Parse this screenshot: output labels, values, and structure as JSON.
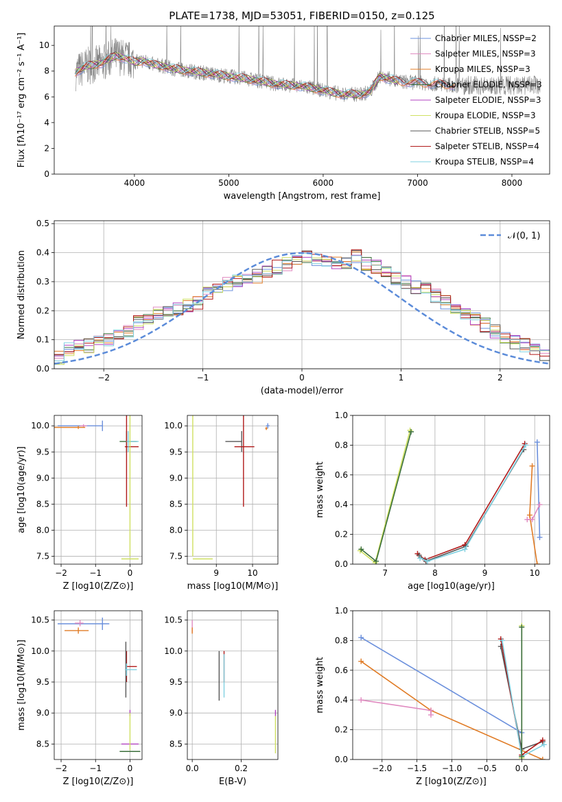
{
  "figure_title": "PLATE=1738, MJD=53051, FIBERID=0150, z=0.125",
  "colors": {
    "Chabrier MILES": "#6a8fdc",
    "Salpeter MILES": "#e08ac0",
    "Kroupa MILES": "#e07b25",
    "Chabrier ELODIE": "#3a6e3a",
    "Salpeter ELODIE": "#b040c0",
    "Kroupa ELODIE": "#cfe060",
    "Chabrier STELIB": "#555555",
    "Salpeter STELIB": "#b01818",
    "Kroupa STELIB": "#7fd0e0",
    "observed": "#808080",
    "gaussian": "#5b8bd9"
  },
  "chart_data": [
    {
      "id": "spectrum",
      "type": "line",
      "title": "PLATE=1738, MJD=53051, FIBERID=0150, z=0.125",
      "xlabel": "wavelength [Angstrom, rest frame]",
      "ylabel": "Flux [fλ10⁻¹⁷ erg cm⁻² s⁻¹ A⁻¹]",
      "xlim": [
        3150,
        8400
      ],
      "ylim": [
        0,
        11.5
      ],
      "xticks": [
        4000,
        5000,
        6000,
        7000,
        8000
      ],
      "yticks": [
        0,
        2,
        4,
        6,
        8,
        10
      ],
      "grid": false,
      "legend_position": "top-right",
      "legend": [
        "Chabrier MILES, N_SSP=2",
        "Salpeter MILES, N_SSP=3",
        "Kroupa MILES, N_SSP=3",
        "Chabrier ELODIE, N_SSP=3",
        "Salpeter ELODIE, N_SSP=3",
        "Kroupa ELODIE, N_SSP=3",
        "Chabrier STELIB, N_SSP=5",
        "Salpeter STELIB, N_SSP=4",
        "Kroupa STELIB, N_SSP=4"
      ],
      "model_continuum": {
        "x": [
          3370,
          3500,
          3650,
          3800,
          3900,
          4000,
          4100,
          4200,
          4300,
          4400,
          4500,
          4700,
          5000,
          5200,
          5500,
          5800,
          6000,
          6200,
          6400,
          6500,
          6600,
          6800,
          7000,
          7200,
          7400
        ],
        "y": [
          7.9,
          8.4,
          8.6,
          9.2,
          9.0,
          8.7,
          8.8,
          8.5,
          8.4,
          8.2,
          8.1,
          7.9,
          7.6,
          7.4,
          7.0,
          6.8,
          6.5,
          6.2,
          6.2,
          6.4,
          7.6,
          7.2,
          7.1,
          7.0,
          6.9
        ]
      }
    },
    {
      "id": "residuals",
      "type": "histogram",
      "xlabel": "(data-model)/error",
      "ylabel": "Normed distribution",
      "xlim": [
        -2.5,
        2.5
      ],
      "ylim": [
        0,
        0.51
      ],
      "xticks": [
        -2,
        -1,
        0,
        1,
        2
      ],
      "yticks": [
        0.0,
        0.1,
        0.2,
        0.3,
        0.4,
        0.5
      ],
      "grid": true,
      "legend_position": "top-right",
      "legend": [
        "𝒩(0, 1)"
      ],
      "bin_width": 0.1,
      "histogram_envelope": [
        0.04,
        0.07,
        0.08,
        0.08,
        0.09,
        0.1,
        0.11,
        0.13,
        0.16,
        0.17,
        0.19,
        0.2,
        0.21,
        0.22,
        0.23,
        0.26,
        0.27,
        0.29,
        0.3,
        0.31,
        0.32,
        0.34,
        0.35,
        0.36,
        0.37,
        0.39,
        0.38,
        0.37,
        0.36,
        0.37,
        0.39,
        0.36,
        0.35,
        0.33,
        0.31,
        0.3,
        0.28,
        0.27,
        0.25,
        0.23,
        0.21,
        0.19,
        0.17,
        0.15,
        0.13,
        0.11,
        0.09,
        0.08,
        0.06,
        0.05
      ]
    },
    {
      "id": "age-vs-Z",
      "type": "scatter",
      "xlabel": "Z [log10(Z/Z⊙)]",
      "ylabel": "age [log10(age/yr)]",
      "xlim": [
        -2.2,
        0.35
      ],
      "ylim": [
        7.35,
        10.2
      ],
      "xticks": [
        -2,
        -1,
        0
      ],
      "yticks": [
        7.5,
        8.0,
        8.5,
        9.0,
        9.5,
        10.0
      ],
      "grid": true,
      "points": [
        {
          "series": "Chabrier MILES",
          "x": -0.8,
          "y": 10.0,
          "xerr": [
            1.3,
            0.0
          ],
          "yerr": 0.1
        },
        {
          "series": "Salpeter MILES",
          "x": -1.35,
          "y": 10.0,
          "xerr": [
            0.1,
            0.1
          ],
          "yerr": 0.03
        },
        {
          "series": "Kroupa MILES",
          "x": -1.5,
          "y": 9.97,
          "xerr": [
            0.7,
            0.2
          ],
          "yerr": 0.03
        },
        {
          "series": "Chabrier ELODIE",
          "x": -0.1,
          "y": 9.7,
          "xerr": [
            0.2,
            0.3
          ],
          "yerr": 0.2
        },
        {
          "series": "Salpeter STELIB",
          "x": -0.1,
          "y": 9.6,
          "xerr": [
            0.05,
            0.35
          ],
          "yerr": 1.15
        },
        {
          "series": "Kroupa STELIB",
          "x": -0.05,
          "y": 9.7,
          "xerr": [
            0.05,
            0.3
          ],
          "yerr": 0.2
        },
        {
          "series": "Kroupa ELODIE",
          "x": 0.0,
          "y": 7.45,
          "xerr": [
            0.25,
            0.25
          ],
          "yerr": 0.0
        },
        {
          "series": "Kroupa ELODIE",
          "x": 0.0,
          "y": 9.9,
          "xerr": [
            0.0,
            0.0
          ],
          "yerr": 2.4
        }
      ]
    },
    {
      "id": "age-vs-mass",
      "type": "scatter",
      "xlabel": "mass [log10(M/M⊙)]",
      "ylabel": "",
      "xlim": [
        8.2,
        10.7
      ],
      "ylim": [
        7.35,
        10.2
      ],
      "xticks": [
        9,
        10
      ],
      "yticks": [
        7.5,
        8.0,
        8.5,
        9.0,
        9.5,
        10.0
      ],
      "grid": true,
      "points": [
        {
          "series": "Chabrier STELIB",
          "x": 9.7,
          "y": 9.7,
          "xerr": [
            0.45,
            0.0
          ],
          "yerr": 0.2
        },
        {
          "series": "Salpeter STELIB",
          "x": 9.75,
          "y": 9.6,
          "xerr": [
            0.25,
            0.3
          ],
          "yerr": 1.15
        },
        {
          "series": "Kroupa ELODIE",
          "x": 8.4,
          "y": 7.45,
          "xerr": [
            0.05,
            0.5
          ],
          "yerr": 0.0
        },
        {
          "series": "Kroupa ELODIE",
          "x": 8.35,
          "y": 9.9,
          "xerr": [
            0.0,
            0.0
          ],
          "yerr": 2.4
        },
        {
          "series": "Chabrier MILES",
          "x": 10.42,
          "y": 10.0,
          "xerr": [
            0.05,
            0.05
          ],
          "yerr": 0.05
        },
        {
          "series": "Kroupa MILES",
          "x": 10.38,
          "y": 9.95,
          "xerr": [
            0.03,
            0.03
          ],
          "yerr": 0.03
        }
      ]
    },
    {
      "id": "massweight-vs-age",
      "type": "line",
      "xlabel": "age [log10(age/yr)]",
      "ylabel": "mass weight",
      "xlim": [
        6.35,
        10.3
      ],
      "ylim": [
        0.0,
        1.0
      ],
      "xticks": [
        7,
        8,
        9,
        10
      ],
      "yticks": [
        0.0,
        0.2,
        0.4,
        0.6,
        0.8,
        1.0
      ],
      "grid": true,
      "series": [
        {
          "name": "Kroupa ELODIE",
          "x": [
            6.5,
            6.8,
            7.5
          ],
          "y": [
            0.09,
            0.01,
            0.9
          ]
        },
        {
          "name": "Chabrier ELODIE",
          "x": [
            6.52,
            6.82,
            7.52
          ],
          "y": [
            0.1,
            0.02,
            0.89
          ]
        },
        {
          "name": "Salpeter STELIB",
          "x": [
            7.65,
            7.8,
            8.6,
            9.8
          ],
          "y": [
            0.07,
            0.03,
            0.13,
            0.81
          ]
        },
        {
          "name": "Chabrier STELIB",
          "x": [
            7.68,
            7.82,
            8.62,
            9.78
          ],
          "y": [
            0.06,
            0.02,
            0.12,
            0.77
          ]
        },
        {
          "name": "Kroupa STELIB",
          "x": [
            7.7,
            7.85,
            8.6,
            9.82
          ],
          "y": [
            0.04,
            0.02,
            0.1,
            0.8
          ]
        },
        {
          "name": "Chabrier MILES",
          "x": [
            10.05,
            10.1
          ],
          "y": [
            0.82,
            0.18
          ]
        },
        {
          "name": "Kroupa MILES",
          "x": [
            9.95,
            9.9,
            10.05
          ],
          "y": [
            0.66,
            0.33,
            0.0
          ]
        },
        {
          "name": "Salpeter MILES",
          "x": [
            9.85,
            9.95,
            10.1
          ],
          "y": [
            0.3,
            0.3,
            0.4
          ]
        }
      ]
    },
    {
      "id": "mass-vs-Z",
      "type": "scatter",
      "xlabel": "Z [log10(Z/Z⊙)]",
      "ylabel": "mass [log10(M/M⊙)]",
      "xlim": [
        -2.2,
        0.35
      ],
      "ylim": [
        8.25,
        10.65
      ],
      "xticks": [
        -2,
        -1,
        0
      ],
      "yticks": [
        8.5,
        9.0,
        9.5,
        10.0,
        10.5
      ],
      "grid": true,
      "points": [
        {
          "series": "Chabrier MILES",
          "x": -0.8,
          "y": 10.44,
          "xerr": [
            1.3,
            0.2
          ],
          "yerr": 0.1
        },
        {
          "series": "Salpeter MILES",
          "x": -1.45,
          "y": 10.45,
          "xerr": [
            0.15,
            0.1
          ],
          "yerr": 0.05
        },
        {
          "series": "Kroupa MILES",
          "x": -1.5,
          "y": 10.33,
          "xerr": [
            0.4,
            0.3
          ],
          "yerr": 0.05
        },
        {
          "series": "Salpeter STELIB",
          "x": -0.1,
          "y": 9.75,
          "xerr": [
            0.0,
            0.3
          ],
          "yerr": 0.25
        },
        {
          "series": "Chabrier STELIB",
          "x": -0.12,
          "y": 9.7,
          "xerr": [
            0.0,
            0.0
          ],
          "yerr": 0.45
        },
        {
          "series": "Kroupa STELIB",
          "x": -0.1,
          "y": 9.7,
          "xerr": [
            0.05,
            0.3
          ],
          "yerr": 0.1
        },
        {
          "series": "Salpeter ELODIE",
          "x": 0.0,
          "y": 8.5,
          "xerr": [
            0.25,
            0.25
          ],
          "yerr": 0.0
        },
        {
          "series": "Salpeter ELODIE",
          "x": 0.0,
          "y": 9.0,
          "xerr": [
            0.0,
            0.0
          ],
          "yerr": 0.05
        },
        {
          "series": "Chabrier ELODIE",
          "x": 0.0,
          "y": 8.38,
          "xerr": [
            0.3,
            0.3
          ],
          "yerr": 0.0
        },
        {
          "series": "Kroupa ELODIE",
          "x": 0.0,
          "y": 8.7,
          "xerr": [
            0.0,
            0.0
          ],
          "yerr": 0.3
        }
      ]
    },
    {
      "id": "mass-vs-EBV",
      "type": "scatter",
      "xlabel": "E(B-V)",
      "ylabel": "",
      "xlim": [
        -0.02,
        0.35
      ],
      "ylim": [
        8.25,
        10.65
      ],
      "xticks": [
        0.0,
        0.2
      ],
      "yticks": [
        8.5,
        9.0,
        9.5,
        10.0,
        10.5
      ],
      "grid": true,
      "points": [
        {
          "series": "Salpeter MILES",
          "x": 0.0,
          "y": 10.4,
          "xerr": [
            0,
            0
          ],
          "yerr": 0.1
        },
        {
          "series": "Kroupa MILES",
          "x": 0.0,
          "y": 10.33,
          "xerr": [
            0,
            0
          ],
          "yerr": 0.05
        },
        {
          "series": "Chabrier STELIB",
          "x": 0.11,
          "y": 9.6,
          "xerr": [
            0,
            0
          ],
          "yerr": 0.4
        },
        {
          "series": "Salpeter STELIB",
          "x": 0.13,
          "y": 9.75,
          "xerr": [
            0,
            0
          ],
          "yerr": 0.25
        },
        {
          "series": "Kroupa STELIB",
          "x": 0.13,
          "y": 9.6,
          "xerr": [
            0,
            0
          ],
          "yerr": 0.35
        },
        {
          "series": "Salpeter ELODIE",
          "x": 0.34,
          "y": 9.0,
          "xerr": [
            0,
            0
          ],
          "yerr": 0.05
        },
        {
          "series": "Kroupa ELODIE",
          "x": 0.34,
          "y": 8.65,
          "xerr": [
            0,
            0
          ],
          "yerr": 0.3
        }
      ]
    },
    {
      "id": "massweight-vs-Z",
      "type": "line",
      "xlabel": "Z [log10(Z/Z⊙)]",
      "ylabel": "mass weight",
      "xlim": [
        -2.42,
        0.4
      ],
      "ylim": [
        0.0,
        1.0
      ],
      "xticks": [
        -2.0,
        -1.5,
        -1.0,
        -0.5,
        0.0
      ],
      "yticks": [
        0.0,
        0.2,
        0.4,
        0.6,
        0.8,
        1.0
      ],
      "grid": true,
      "series": [
        {
          "name": "Chabrier MILES",
          "x": [
            -2.3,
            0.0
          ],
          "y": [
            0.82,
            0.18
          ]
        },
        {
          "name": "Kroupa MILES",
          "x": [
            -2.3,
            -1.3,
            0.3
          ],
          "y": [
            0.66,
            0.33,
            0.0
          ]
        },
        {
          "name": "Salpeter MILES",
          "x": [
            -2.3,
            -1.3,
            -1.3
          ],
          "y": [
            0.4,
            0.33,
            0.3
          ]
        },
        {
          "name": "Chabrier STELIB",
          "x": [
            -0.3,
            0.0,
            0.3
          ],
          "y": [
            0.76,
            0.07,
            0.12
          ]
        },
        {
          "name": "Salpeter STELIB",
          "x": [
            -0.3,
            0.0,
            0.3
          ],
          "y": [
            0.81,
            0.03,
            0.13
          ]
        },
        {
          "name": "Kroupa STELIB",
          "x": [
            -0.28,
            0.0,
            0.32
          ],
          "y": [
            0.8,
            0.02,
            0.1
          ]
        },
        {
          "name": "Kroupa ELODIE",
          "x": [
            0.0,
            0.0
          ],
          "y": [
            0.9,
            0.01
          ]
        },
        {
          "name": "Chabrier ELODIE",
          "x": [
            0.0,
            0.0
          ],
          "y": [
            0.89,
            0.02
          ]
        }
      ]
    }
  ]
}
